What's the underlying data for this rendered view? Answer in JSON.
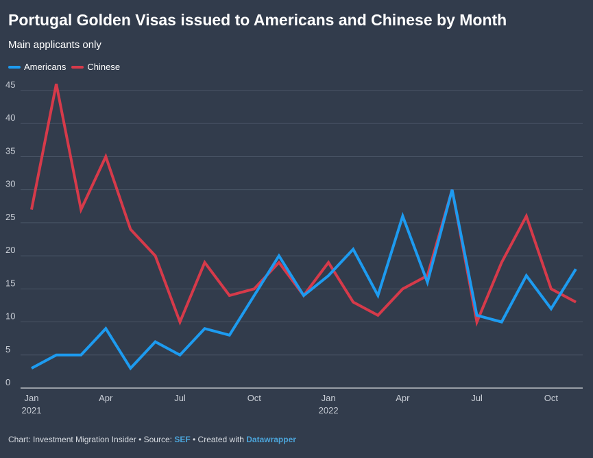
{
  "header": {
    "title": "Portugal Golden Visas issued to Americans and Chinese by Month",
    "subtitle": "Main applicants only"
  },
  "footer": {
    "chart_prefix": "Chart: Investment Migration Insider • Source: ",
    "source_link": "SEF",
    "created_prefix": " • Created with ",
    "tool_link": "Datawrapper"
  },
  "colors": {
    "background": "#323c4c",
    "americans": "#1d9bf0",
    "chinese": "#d63a4a",
    "grid": "#4a5566",
    "tick_text": "#c9ced6"
  },
  "chart_data": {
    "type": "line",
    "title": "Portugal Golden Visas issued to Americans and Chinese by Month",
    "subtitle": "Main applicants only",
    "xlabel": "",
    "ylabel": "",
    "ylim": [
      0,
      45
    ],
    "yticks": [
      "0",
      "5",
      "10",
      "15",
      "20",
      "25",
      "30",
      "35",
      "40",
      "45"
    ],
    "grid": true,
    "legend": "top-left",
    "x": [
      "Jan 2021",
      "Feb 2021",
      "Mar 2021",
      "Apr 2021",
      "May 2021",
      "Jun 2021",
      "Jul 2021",
      "Aug 2021",
      "Sep 2021",
      "Oct 2021",
      "Nov 2021",
      "Dec 2021",
      "Jan 2022",
      "Feb 2022",
      "Mar 2022",
      "Apr 2022",
      "May 2022",
      "Jun 2022",
      "Jul 2022",
      "Aug 2022",
      "Sep 2022",
      "Oct 2022",
      "Nov 2022"
    ],
    "xticks": [
      {
        "index": 0,
        "label": "Jan",
        "sublabel": "2021"
      },
      {
        "index": 3,
        "label": "Apr",
        "sublabel": ""
      },
      {
        "index": 6,
        "label": "Jul",
        "sublabel": ""
      },
      {
        "index": 9,
        "label": "Oct",
        "sublabel": ""
      },
      {
        "index": 12,
        "label": "Jan",
        "sublabel": "2022"
      },
      {
        "index": 15,
        "label": "Apr",
        "sublabel": ""
      },
      {
        "index": 18,
        "label": "Jul",
        "sublabel": ""
      },
      {
        "index": 21,
        "label": "Oct",
        "sublabel": ""
      }
    ],
    "series": [
      {
        "name": "Americans",
        "values": [
          3,
          5,
          5,
          9,
          3,
          7,
          5,
          9,
          8,
          14,
          20,
          14,
          17,
          21,
          14,
          26,
          16,
          30,
          11,
          10,
          17,
          12,
          18
        ]
      },
      {
        "name": "Chinese",
        "values": [
          27,
          46,
          27,
          35,
          24,
          20,
          10,
          19,
          14,
          15,
          19,
          14,
          19,
          13,
          11,
          15,
          17,
          30,
          10,
          19,
          26,
          15,
          13
        ]
      }
    ]
  }
}
